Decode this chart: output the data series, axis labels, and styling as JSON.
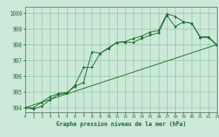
{
  "title": "Graphe pression niveau de la mer (hPa)",
  "background_color": "#cce8d8",
  "grid_color": "#99ccaa",
  "line_color": "#1a6b2a",
  "xlim": [
    0,
    23
  ],
  "ylim": [
    993.7,
    1000.4
  ],
  "yticks": [
    994,
    995,
    996,
    997,
    998,
    999,
    1000
  ],
  "xticks": [
    0,
    1,
    2,
    3,
    4,
    5,
    6,
    7,
    8,
    9,
    10,
    11,
    12,
    13,
    14,
    15,
    16,
    17,
    18,
    19,
    20,
    21,
    22,
    23
  ],
  "series1": [
    994.0,
    994.0,
    994.35,
    994.7,
    994.9,
    994.95,
    995.35,
    995.6,
    997.55,
    997.45,
    997.8,
    998.15,
    998.2,
    998.4,
    998.55,
    998.8,
    998.9,
    999.95,
    999.8,
    999.45,
    999.35,
    998.5,
    998.5,
    998.0
  ],
  "series2": [
    994.0,
    993.9,
    994.1,
    994.5,
    994.85,
    994.9,
    995.45,
    996.55,
    996.55,
    997.45,
    997.75,
    998.15,
    998.15,
    998.15,
    998.4,
    998.6,
    998.75,
    999.85,
    999.15,
    999.45,
    999.35,
    998.45,
    998.45,
    997.95
  ],
  "series3_x": [
    0,
    23
  ],
  "series3_y": [
    994.0,
    998.0
  ],
  "figsize": [
    3.2,
    2.0
  ],
  "dpi": 100
}
